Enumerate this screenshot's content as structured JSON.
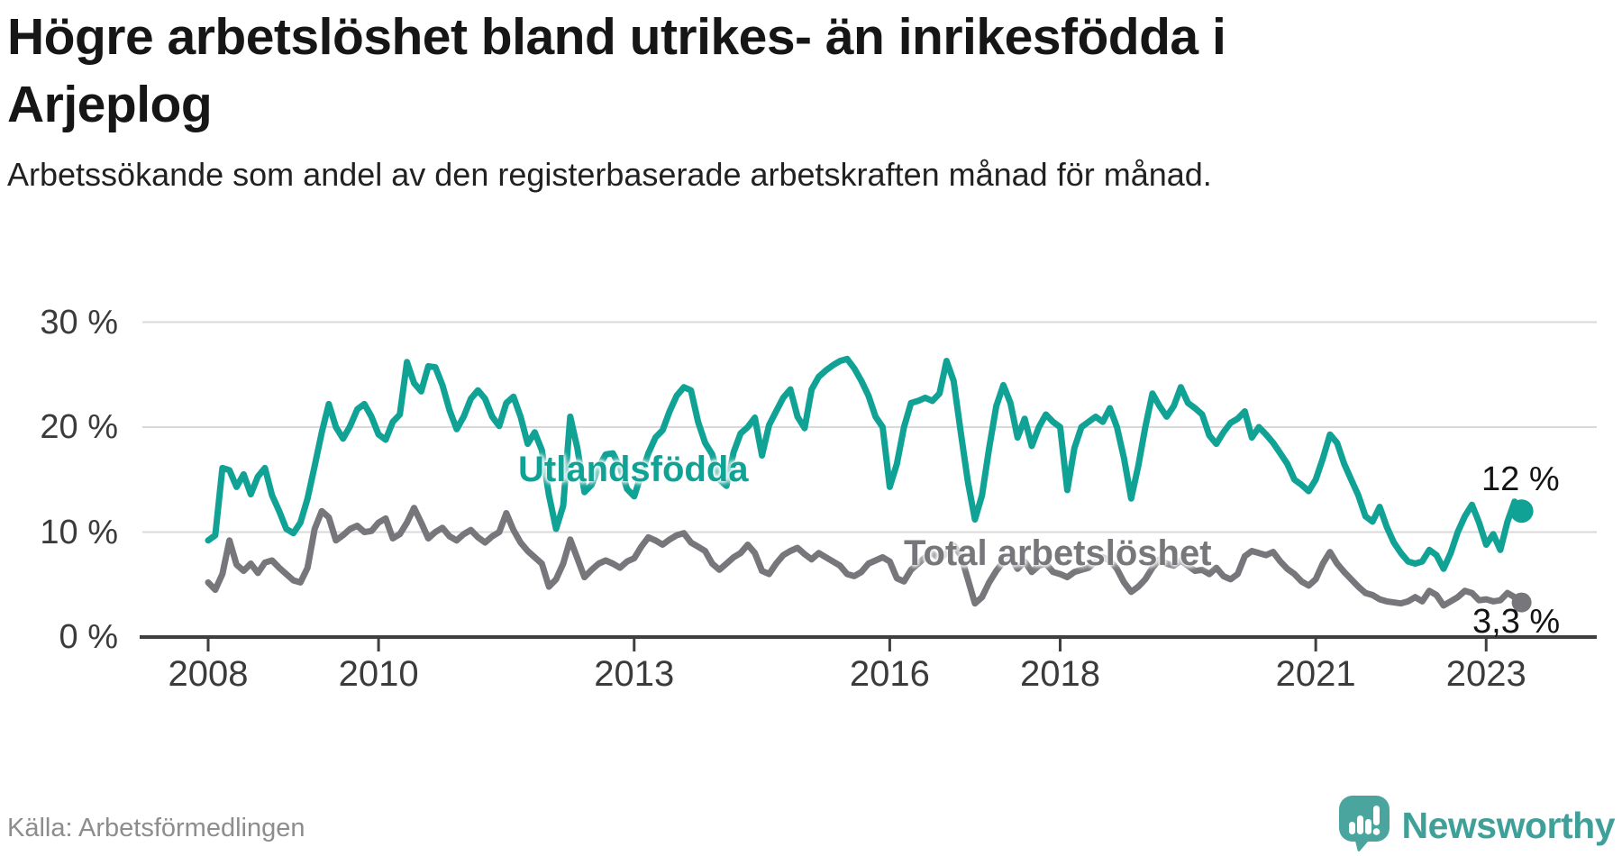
{
  "title": "Högre arbetslöshet bland utrikes- än inrikesfödda i Arjeplog",
  "subtitle": "Arbetssökande som andel av den registerbaserade arbetskraften månad för månad.",
  "source": "Källa: Arbetsförmedlingen",
  "branding": {
    "name": "Newsworthy",
    "icon": "newsworthy-speech-bubble-barchart-icon",
    "icon_color": "#4aa59f",
    "text_color": "#3fa09a"
  },
  "chart_data": {
    "type": "line",
    "title": "Högre arbetslöshet bland utrikes- än inrikesfödda i Arjeplog",
    "subtitle": "Arbetssökande som andel av den registerbaserade arbetskraften månad för månad.",
    "unit": "%",
    "frequency": "monthly",
    "start": "2008-01",
    "end": "2023-06",
    "ylim": [
      0,
      30
    ],
    "grid": "horizontal",
    "axis_color": "#3f3f3f",
    "grid_color": "#d9d9d9",
    "y_ticks": [
      {
        "value": 30,
        "label": "30 %"
      },
      {
        "value": 20,
        "label": "20 %"
      },
      {
        "value": 10,
        "label": "10 %"
      },
      {
        "value": 0,
        "label": "0 %"
      }
    ],
    "x_ticks": [
      {
        "year": 2008,
        "label": "2008"
      },
      {
        "year": 2010,
        "label": "2010"
      },
      {
        "year": 2013,
        "label": "2013"
      },
      {
        "year": 2016,
        "label": "2016"
      },
      {
        "year": 2018,
        "label": "2018"
      },
      {
        "year": 2021,
        "label": "2021"
      },
      {
        "year": 2023,
        "label": "2023"
      }
    ],
    "series": [
      {
        "name": "Utlandsfödda",
        "color": "#11a296",
        "end_label": "12 %",
        "end_value": 12.0,
        "dot_radius": 13,
        "values": [
          9.2,
          9.7,
          16.1,
          15.9,
          14.3,
          15.5,
          13.6,
          15.3,
          16.1,
          13.5,
          12.0,
          10.3,
          9.9,
          10.9,
          13.2,
          16.3,
          19.5,
          22.2,
          20.0,
          18.9,
          20.1,
          21.7,
          22.2,
          21.0,
          19.3,
          18.8,
          20.5,
          21.2,
          26.2,
          24.2,
          23.4,
          25.8,
          25.7,
          24.0,
          21.6,
          19.8,
          21.0,
          22.7,
          23.5,
          22.7,
          21.0,
          20.1,
          22.3,
          22.9,
          21.0,
          18.4,
          19.5,
          17.8,
          13.5,
          10.3,
          12.5,
          21.0,
          18.0,
          13.8,
          14.5,
          16.2,
          17.4,
          17.5,
          16.2,
          14.1,
          13.4,
          15.5,
          17.5,
          19.0,
          19.7,
          21.5,
          23.0,
          23.8,
          23.5,
          20.5,
          18.5,
          17.4,
          15.0,
          14.4,
          17.6,
          19.4,
          20.0,
          20.9,
          17.3,
          20.2,
          21.5,
          22.8,
          23.6,
          21.0,
          19.9,
          23.6,
          24.8,
          25.4,
          25.9,
          26.3,
          26.5,
          25.6,
          24.4,
          23.0,
          21.0,
          20.0,
          14.3,
          16.5,
          20.0,
          22.3,
          22.5,
          22.8,
          22.5,
          23.2,
          26.3,
          24.4,
          19.5,
          14.8,
          11.2,
          13.5,
          18.0,
          22.0,
          24.0,
          22.3,
          19.0,
          20.8,
          18.2,
          20.0,
          21.2,
          20.5,
          20.0,
          14.0,
          18.0,
          20.0,
          20.5,
          21.0,
          20.5,
          21.8,
          20.0,
          17.0,
          13.2,
          16.3,
          20.0,
          23.2,
          22.0,
          21.0,
          22.0,
          23.8,
          22.3,
          21.8,
          21.2,
          19.2,
          18.4,
          19.5,
          20.4,
          20.8,
          21.5,
          19.0,
          20.0,
          19.3,
          18.5,
          17.5,
          16.5,
          15.0,
          14.5,
          13.9,
          15.0,
          17.0,
          19.3,
          18.5,
          16.5,
          15.0,
          13.5,
          11.5,
          11.0,
          12.4,
          10.5,
          9.0,
          8.0,
          7.2,
          7.0,
          7.2,
          8.3,
          7.8,
          6.5,
          8.0,
          10.0,
          11.5,
          12.6,
          10.9,
          8.8,
          9.8,
          8.3,
          11.0,
          12.9,
          12.0
        ]
      },
      {
        "name": "Total arbetslöshet",
        "color": "#77777b",
        "end_label": "3,3 %",
        "end_value": 3.3,
        "dot_radius": 11,
        "values": [
          5.2,
          4.5,
          6.0,
          9.2,
          6.9,
          6.3,
          7.0,
          6.1,
          7.1,
          7.3,
          6.6,
          6.0,
          5.4,
          5.2,
          6.6,
          10.3,
          12.0,
          11.4,
          9.2,
          9.7,
          10.3,
          10.6,
          10.0,
          10.1,
          10.9,
          11.3,
          9.4,
          9.8,
          10.9,
          12.3,
          10.9,
          9.4,
          10.0,
          10.4,
          9.6,
          9.2,
          9.8,
          10.2,
          9.5,
          9.0,
          9.6,
          10.0,
          11.8,
          10.2,
          9.0,
          8.2,
          7.6,
          7.0,
          4.8,
          5.5,
          7.0,
          9.3,
          7.5,
          5.7,
          6.4,
          7.0,
          7.3,
          7.0,
          6.6,
          7.2,
          7.5,
          8.6,
          9.5,
          9.2,
          8.8,
          9.3,
          9.7,
          9.9,
          9.0,
          8.6,
          8.2,
          7.0,
          6.4,
          7.0,
          7.6,
          8.0,
          8.8,
          8.0,
          6.3,
          6.0,
          7.0,
          7.8,
          8.2,
          8.5,
          7.9,
          7.4,
          8.0,
          7.6,
          7.2,
          6.8,
          6.0,
          5.8,
          6.2,
          7.0,
          7.3,
          7.6,
          7.2,
          5.6,
          5.3,
          6.4,
          7.0,
          7.6,
          8.0,
          7.4,
          8.0,
          8.7,
          7.8,
          5.5,
          3.2,
          3.8,
          5.2,
          6.3,
          7.2,
          7.6,
          6.5,
          7.2,
          6.2,
          6.8,
          7.0,
          6.2,
          6.0,
          5.7,
          6.2,
          6.4,
          6.6,
          7.2,
          7.6,
          7.3,
          6.5,
          5.2,
          4.3,
          4.8,
          5.5,
          6.6,
          7.4,
          7.0,
          6.8,
          7.3,
          6.8,
          6.3,
          6.4,
          6.0,
          6.6,
          5.8,
          5.5,
          6.0,
          7.7,
          8.2,
          8.0,
          7.8,
          8.1,
          7.2,
          6.5,
          6.0,
          5.3,
          4.9,
          5.5,
          7.0,
          8.1,
          7.0,
          6.2,
          5.5,
          4.8,
          4.2,
          4.0,
          3.6,
          3.4,
          3.3,
          3.2,
          3.4,
          3.8,
          3.4,
          4.4,
          4.0,
          3.0,
          3.4,
          3.8,
          4.4,
          4.2,
          3.5,
          3.6,
          3.4,
          3.5,
          4.2,
          3.8,
          3.3
        ]
      }
    ]
  }
}
